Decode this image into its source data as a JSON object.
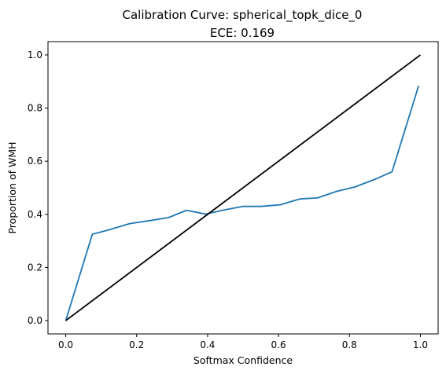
{
  "chart_data": {
    "type": "line",
    "title": "Calibration Curve: spherical_topk_dice_0",
    "subtitle": "ECE: 0.169",
    "xlabel": "Softmax Confidence",
    "ylabel": "Proportion of WMH",
    "xlim": [
      -0.05,
      1.05
    ],
    "ylim": [
      -0.05,
      1.05
    ],
    "xticks": [
      "0.0",
      "0.2",
      "0.4",
      "0.6",
      "0.8",
      "1.0"
    ],
    "yticks": [
      "0.0",
      "0.2",
      "0.4",
      "0.6",
      "0.8",
      "1.0"
    ],
    "grid": false,
    "series": [
      {
        "color": "#1f77b4",
        "x": [
          0.0,
          0.075,
          0.125,
          0.18,
          0.235,
          0.29,
          0.34,
          0.395,
          0.445,
          0.5,
          0.55,
          0.605,
          0.66,
          0.71,
          0.765,
          0.815,
          0.87,
          0.92,
          0.995
        ],
        "y": [
          0.0,
          0.325,
          0.343,
          0.365,
          0.376,
          0.388,
          0.415,
          0.401,
          0.416,
          0.43,
          0.43,
          0.436,
          0.458,
          0.462,
          0.487,
          0.503,
          0.531,
          0.56,
          0.884
        ]
      },
      {
        "color": "#000000",
        "x": [
          0.0,
          1.0
        ],
        "y": [
          0.0,
          1.0
        ]
      }
    ]
  }
}
